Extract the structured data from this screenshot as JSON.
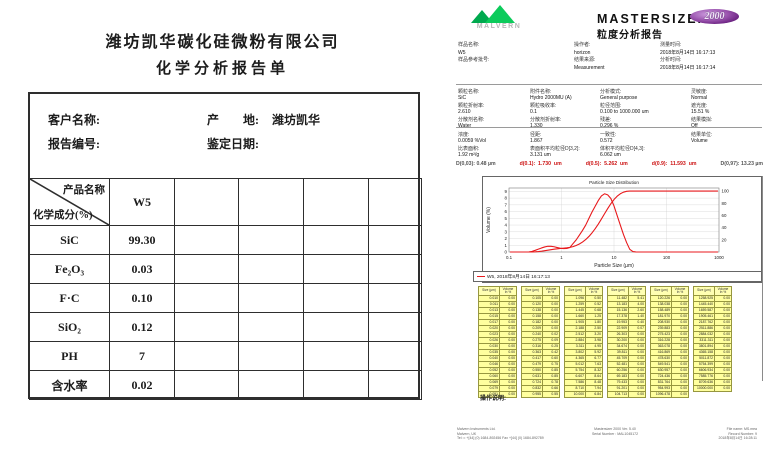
{
  "page": {
    "background": "#ffffff"
  },
  "left_report": {
    "company": "潍坊凯华碳化硅微粉有限公司",
    "title": "化学分析报告单",
    "header": {
      "customer_label": "客户名称:",
      "origin_label": "产　　地: ",
      "origin_value": "潍坊凯华",
      "report_no_label": "报告编号:",
      "date_label": "鉴定日期:"
    },
    "matrix": {
      "corner_top": "产品名称",
      "corner_bottom": "化学成分(%)",
      "product_header": "W5",
      "empty_columns": 4,
      "rows": [
        {
          "component": "SiC",
          "value": "99.30"
        },
        {
          "component": "Fe₂O₃",
          "value": "0.03"
        },
        {
          "component": "F·C",
          "value": "0.10"
        },
        {
          "component": "SiO₂",
          "value": "0.12"
        },
        {
          "component": "PH",
          "value": "7"
        },
        {
          "component": "含水率",
          "value": "0.02"
        }
      ]
    }
  },
  "right_report": {
    "brand": {
      "logo_text": "MALVERN",
      "product_name": "MASTERSIZER",
      "badge": "2000",
      "report_title": "粒度分析报告",
      "accent_green": "#00b050",
      "accent_purple": "#6c2382"
    },
    "info_columns": [
      [
        {
          "label": "样品名称:",
          "value": "W5"
        },
        {
          "label": "样品参考批号:",
          "value": ""
        }
      ],
      [
        {
          "label": "操作者:",
          "value": "horizon"
        },
        {
          "label": "结果来源:",
          "value": "Measurement"
        }
      ],
      [
        {
          "label": "测量时间:",
          "value": "2018年8月14日 16:17:13"
        },
        {
          "label": "分析时间:",
          "value": "2018年8月14日 16:17:14"
        }
      ]
    ],
    "params_block1": [
      [
        {
          "label": "颗粒名称:",
          "value": "SiC"
        },
        {
          "label": "颗粒折射率:",
          "value": "2.610"
        },
        {
          "label": "分散剂名称:",
          "value": "Water"
        }
      ],
      [
        {
          "label": "附件名称:",
          "value": "Hydro 2000MU (A)"
        },
        {
          "label": "颗粒吸收率:",
          "value": "0.1"
        },
        {
          "label": "分散剂折射率:",
          "value": "1.330"
        }
      ],
      [
        {
          "label": "分析模式:",
          "value": "General purpose"
        },
        {
          "label": "粒径范围:",
          "value": "0.100 to 1000.000 um"
        },
        {
          "label": "残差:",
          "value": "0.296 %"
        }
      ],
      [
        {
          "label": "灵敏度:",
          "value": "Normal"
        },
        {
          "label": "遮光度:",
          "value": "15.51 %"
        },
        {
          "label": "结果模拟:",
          "value": "Off"
        }
      ]
    ],
    "params_block2": [
      [
        {
          "label": "浓度:",
          "value": "0.0059 %Vol"
        },
        {
          "label": "比表面积:",
          "value": "1.92 m²/g"
        }
      ],
      [
        {
          "label": "径距:",
          "value": "1.867"
        },
        {
          "label": "表面积平均粒径D[3,2]:",
          "value": "3.131 um"
        }
      ],
      [
        {
          "label": "一致性:",
          "value": "0.572"
        },
        {
          "label": "体积平均粒径D[4,3]:",
          "value": "6.062 um"
        }
      ],
      [
        {
          "label": "结果单位:",
          "value": "Volume"
        }
      ]
    ],
    "d_values": [
      {
        "text": "D(0,03): 0.48 µm",
        "highlight": false
      },
      {
        "text": "d(0.1):  1.730  um",
        "highlight": true
      },
      {
        "text": "d(0.5):  5.262  um",
        "highlight": true
      },
      {
        "text": "d(0.9):  11.593  um",
        "highlight": true
      },
      {
        "text": "D(0,97): 13.23 µm",
        "highlight": false
      }
    ],
    "table_headers": {
      "size": "Size (µm)",
      "volume": "Volume In %"
    },
    "notes_label": "操作说明:",
    "footer": {
      "left_lines": [
        "Malvern Instruments Ltd.",
        "Malvern, UK",
        "Tel := +[44] (0) 1684-892456 Fax +[44] (0) 1684-892789"
      ],
      "center_lines": [
        "Mastersizer 2000 Ver. 5.40",
        "Serial Number : MAL1045172"
      ],
      "right_lines": [
        "File name: MS.mea",
        "Record Number: 9",
        "2018年8月14日 16:28:11"
      ]
    }
  },
  "chart_data": {
    "type": "line",
    "title": "Particle Size Distribution",
    "xlabel": "Particle Size (µm)",
    "ylabel": "Volume (%)",
    "x_scale": "log",
    "xlim": [
      0.1,
      1000
    ],
    "ylim_left": [
      0,
      9.5
    ],
    "ylim_right": [
      0,
      105
    ],
    "x_ticks": [
      "0.1",
      "1",
      "10",
      "100",
      "1000"
    ],
    "y_ticks_left": [
      0,
      1,
      2,
      3,
      4,
      5,
      6,
      7,
      8,
      9
    ],
    "y_ticks_right": [
      20,
      40,
      60,
      80,
      100
    ],
    "grid": true,
    "legend": "W5, 2018年8月14日 16:17:13",
    "series_color": "#e8191c",
    "series": [
      "frequency",
      "cumulative"
    ],
    "sizes_um": [
      "0.010",
      "0.011",
      "0.013",
      "0.015",
      "0.017",
      "0.020",
      "0.023",
      "0.026",
      "0.030",
      "0.035",
      "0.040",
      "0.046",
      "0.052",
      "0.060",
      "0.069",
      "0.079",
      "0.091",
      "0.105",
      "0.120",
      "0.138",
      "0.158",
      "0.182",
      "0.209",
      "0.240",
      "0.275",
      "0.316",
      "0.363",
      "0.417",
      "0.479",
      "0.550",
      "0.631",
      "0.724",
      "0.832",
      "0.955",
      "1.096",
      "1.259",
      "1.445",
      "1.660",
      "1.905",
      "2.188",
      "2.512",
      "2.884",
      "3.311",
      "3.802",
      "4.365",
      "5.012",
      "5.754",
      "6.607",
      "7.586",
      "8.710",
      "10.000",
      "11.482",
      "13.183",
      "15.136",
      "17.378",
      "19.953",
      "22.909",
      "26.303",
      "30.200",
      "34.674",
      "39.811",
      "45.709",
      "52.481",
      "60.256",
      "69.183",
      "79.433",
      "91.201",
      "104.713",
      "120.226",
      "138.038",
      "158.489",
      "181.970",
      "208.930",
      "239.883",
      "275.423",
      "316.228",
      "363.078",
      "416.869",
      "478.630",
      "549.541",
      "630.957",
      "724.436",
      "831.764",
      "954.993",
      "1096.478",
      "1258.925",
      "1445.440",
      "1659.587",
      "1905.461",
      "2187.762",
      "2511.886",
      "2884.032",
      "3311.311",
      "3801.894",
      "4365.158",
      "5011.872",
      "5754.399",
      "6606.934",
      "7585.776",
      "8709.636",
      "10000.000"
    ],
    "volume_percent": [
      "0.00",
      "0.00",
      "0.00",
      "0.00",
      "0.00",
      "0.00",
      "0.00",
      "0.00",
      "0.00",
      "0.00",
      "0.00",
      "0.00",
      "0.00",
      "0.00",
      "0.00",
      "0.00",
      "0.00",
      "0.00",
      "0.00",
      "0.00",
      "0.00",
      "0.00",
      "0.00",
      "0.02",
      "0.09",
      "0.25",
      "0.42",
      "0.60",
      "0.75",
      "0.85",
      "0.85",
      "0.78",
      "0.66",
      "0.55",
      "0.50",
      "0.52",
      "0.68",
      "1.25",
      "1.80",
      "2.50",
      "3.20",
      "3.98",
      "4.95",
      "5.92",
      "6.77",
      "7.63",
      "8.32",
      "8.64",
      "8.48",
      "7.94",
      "6.84",
      "5.41",
      "4.00",
      "2.60",
      "1.40",
      "0.40",
      "0.07",
      "0.00",
      "0.00",
      "0.00",
      "0.00",
      "0.00",
      "0.00",
      "0.00",
      "0.00",
      "0.00",
      "0.00",
      "0.00",
      "0.00",
      "0.00",
      "0.00",
      "0.00",
      "0.00",
      "0.00",
      "0.00",
      "0.00",
      "0.00",
      "0.00",
      "0.00",
      "0.00",
      "0.00",
      "0.00",
      "0.00",
      "0.00",
      "0.00",
      "0.00",
      "0.00",
      "0.00",
      "0.00",
      "0.00",
      "0.00",
      "0.00",
      "0.00",
      "0.00",
      "0.00",
      "0.00",
      "0.00",
      "0.00",
      "0.00",
      "0.00",
      "0.00"
    ]
  }
}
